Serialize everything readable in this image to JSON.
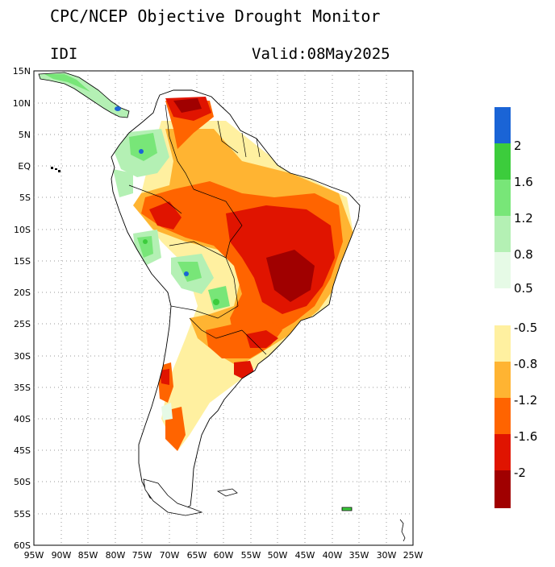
{
  "title": "CPC/NCEP Objective Drought Monitor",
  "index_label": "IDI",
  "valid_label": "Valid:08May2025",
  "map": {
    "lon_range": [
      -95,
      -25
    ],
    "lat_range": [
      -60,
      15
    ],
    "lat_ticks": [
      "15N",
      "10N",
      "5N",
      "EQ",
      "5S",
      "10S",
      "15S",
      "20S",
      "25S",
      "30S",
      "35S",
      "40S",
      "45S",
      "50S",
      "55S",
      "60S"
    ],
    "lon_ticks": [
      "95W",
      "90W",
      "85W",
      "80W",
      "75W",
      "70W",
      "65W",
      "60W",
      "55W",
      "50W",
      "45W",
      "40W",
      "35W",
      "30W",
      "25W"
    ],
    "grid": true
  },
  "legend_wet": {
    "labels": [
      "2",
      "1.6",
      "1.2",
      "0.8",
      "0.5"
    ],
    "colors": [
      "#1a64d6",
      "#3ccc3c",
      "#78e678",
      "#b4f0b4",
      "#e6fae6"
    ]
  },
  "legend_dry": {
    "labels": [
      "-0.5",
      "-0.8",
      "-1.2",
      "-1.6",
      "-2"
    ],
    "colors": [
      "#fff0a0",
      "#ffb432",
      "#ff6400",
      "#e01400",
      "#a00000"
    ]
  },
  "colors": {
    "land": "#ffffff",
    "gridline": "#9a9a9a",
    "coast": "#000000"
  }
}
